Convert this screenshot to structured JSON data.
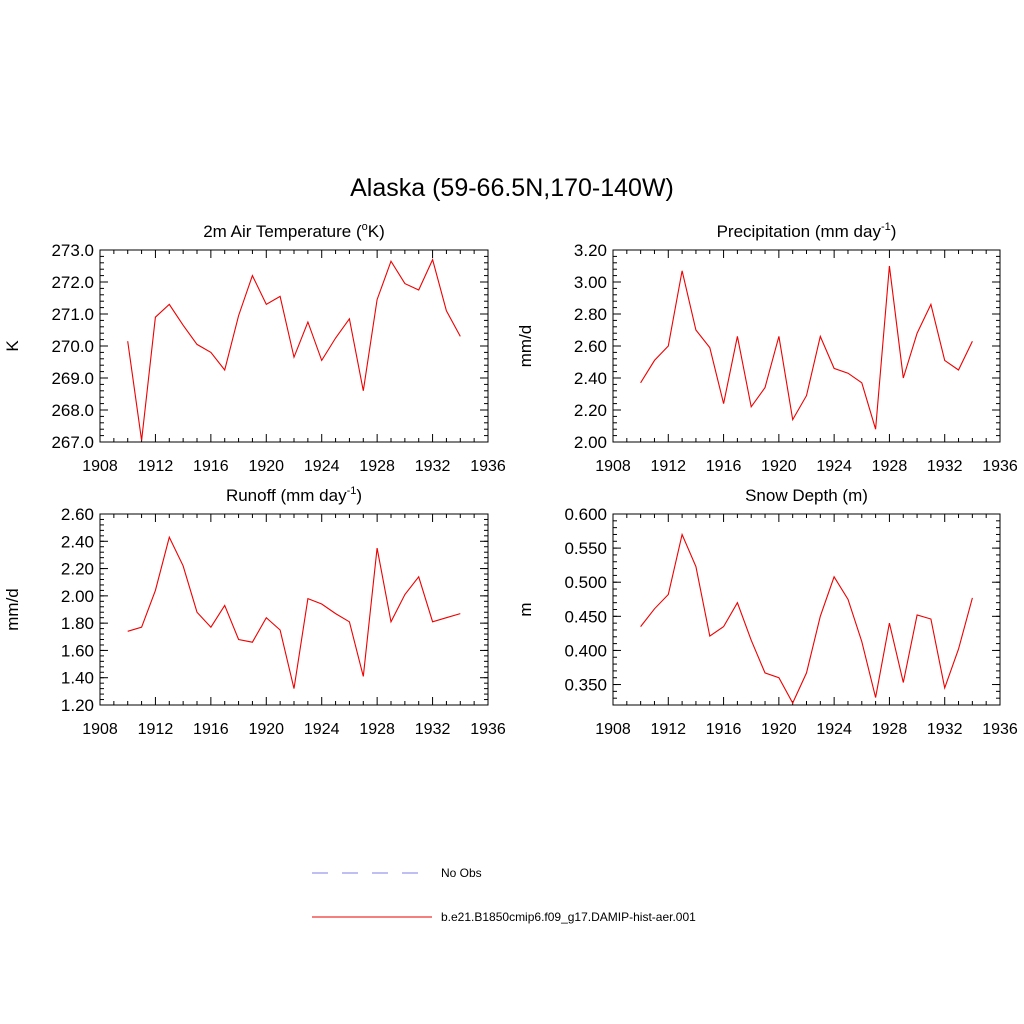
{
  "figure_title": "Alaska (59-66.5N,170-140W)",
  "legend": [
    {
      "label": "No Obs",
      "color": "#9999ee",
      "dashed": true
    },
    {
      "label": "b.e21.B1850cmip6.f09_g17.DAMIP-hist-aer.001",
      "color": "#ee3333",
      "dashed": false
    }
  ],
  "chart_data": [
    {
      "type": "line",
      "title": "2m Air Temperature (",
      "title_sup": "o",
      "title_after": "K)",
      "ylabel": "K",
      "xlim": [
        1908,
        1936
      ],
      "ylim": [
        267.0,
        273.0
      ],
      "xticks": [
        1908,
        1912,
        1916,
        1920,
        1924,
        1928,
        1932,
        1936
      ],
      "yticks": [
        "267.0",
        "268.0",
        "269.0",
        "270.0",
        "271.0",
        "272.0",
        "273.0"
      ],
      "series": [
        {
          "color": "#ee0000",
          "x": [
            1910,
            1911,
            1912,
            1913,
            1914,
            1915,
            1916,
            1917,
            1918,
            1919,
            1920,
            1921,
            1922,
            1923,
            1924,
            1925,
            1926,
            1927,
            1928,
            1929,
            1930,
            1931,
            1932,
            1933,
            1934
          ],
          "y": [
            270.15,
            267.05,
            270.9,
            271.3,
            270.65,
            270.05,
            269.8,
            269.25,
            270.95,
            272.2,
            271.3,
            271.55,
            269.65,
            270.75,
            269.55,
            270.25,
            270.85,
            268.6,
            271.45,
            272.65,
            271.95,
            271.75,
            272.7,
            271.1,
            270.3
          ]
        }
      ]
    },
    {
      "type": "line",
      "title": "Precipitation (mm day",
      "title_sup": "-1",
      "title_after": ")",
      "ylabel": "mm/d",
      "xlim": [
        1908,
        1936
      ],
      "ylim": [
        2.0,
        3.2
      ],
      "xticks": [
        1908,
        1912,
        1916,
        1920,
        1924,
        1928,
        1932,
        1936
      ],
      "yticks": [
        "2.00",
        "2.20",
        "2.40",
        "2.60",
        "2.80",
        "3.00",
        "3.20"
      ],
      "series": [
        {
          "color": "#ee0000",
          "x": [
            1910,
            1911,
            1912,
            1913,
            1914,
            1915,
            1916,
            1917,
            1918,
            1919,
            1920,
            1921,
            1922,
            1923,
            1924,
            1925,
            1926,
            1927,
            1928,
            1929,
            1930,
            1931,
            1932,
            1933,
            1934
          ],
          "y": [
            2.37,
            2.51,
            2.6,
            3.07,
            2.7,
            2.59,
            2.24,
            2.66,
            2.22,
            2.34,
            2.66,
            2.14,
            2.29,
            2.66,
            2.46,
            2.43,
            2.37,
            2.08,
            3.1,
            2.4,
            2.68,
            2.86,
            2.51,
            2.45,
            2.63
          ]
        }
      ]
    },
    {
      "type": "line",
      "title": "Runoff (mm day",
      "title_sup": "-1",
      "title_after": ")",
      "ylabel": "mm/d",
      "xlim": [
        1908,
        1936
      ],
      "ylim": [
        1.2,
        2.6
      ],
      "xticks": [
        1908,
        1912,
        1916,
        1920,
        1924,
        1928,
        1932,
        1936
      ],
      "yticks": [
        "1.20",
        "1.40",
        "1.60",
        "1.80",
        "2.00",
        "2.20",
        "2.40",
        "2.60"
      ],
      "series": [
        {
          "color": "#ee0000",
          "x": [
            1910,
            1911,
            1912,
            1913,
            1914,
            1915,
            1916,
            1917,
            1918,
            1919,
            1920,
            1921,
            1922,
            1923,
            1924,
            1925,
            1926,
            1927,
            1928,
            1929,
            1930,
            1931,
            1932,
            1933,
            1934
          ],
          "y": [
            1.74,
            1.77,
            2.04,
            2.43,
            2.22,
            1.88,
            1.77,
            1.93,
            1.68,
            1.66,
            1.84,
            1.75,
            1.32,
            1.98,
            1.94,
            1.87,
            1.81,
            1.41,
            2.35,
            1.81,
            2.01,
            2.14,
            1.81,
            1.84,
            1.87
          ]
        }
      ]
    },
    {
      "type": "line",
      "title": "Snow Depth (m)",
      "title_sup": "",
      "title_after": "",
      "ylabel": "m",
      "xlim": [
        1908,
        1936
      ],
      "ylim": [
        0.32,
        0.6
      ],
      "xticks": [
        1908,
        1912,
        1916,
        1920,
        1924,
        1928,
        1932,
        1936
      ],
      "yticks": [
        "0.350",
        "0.400",
        "0.450",
        "0.500",
        "0.550",
        "0.600"
      ],
      "series": [
        {
          "color": "#ee0000",
          "x": [
            1910,
            1911,
            1912,
            1913,
            1914,
            1915,
            1916,
            1917,
            1918,
            1919,
            1920,
            1921,
            1922,
            1923,
            1924,
            1925,
            1926,
            1927,
            1928,
            1929,
            1930,
            1931,
            1932,
            1933,
            1934
          ],
          "y": [
            0.435,
            0.461,
            0.482,
            0.57,
            0.523,
            0.421,
            0.435,
            0.47,
            0.415,
            0.367,
            0.36,
            0.323,
            0.367,
            0.45,
            0.508,
            0.475,
            0.413,
            0.331,
            0.44,
            0.353,
            0.452,
            0.446,
            0.345,
            0.402,
            0.477
          ]
        }
      ]
    }
  ]
}
